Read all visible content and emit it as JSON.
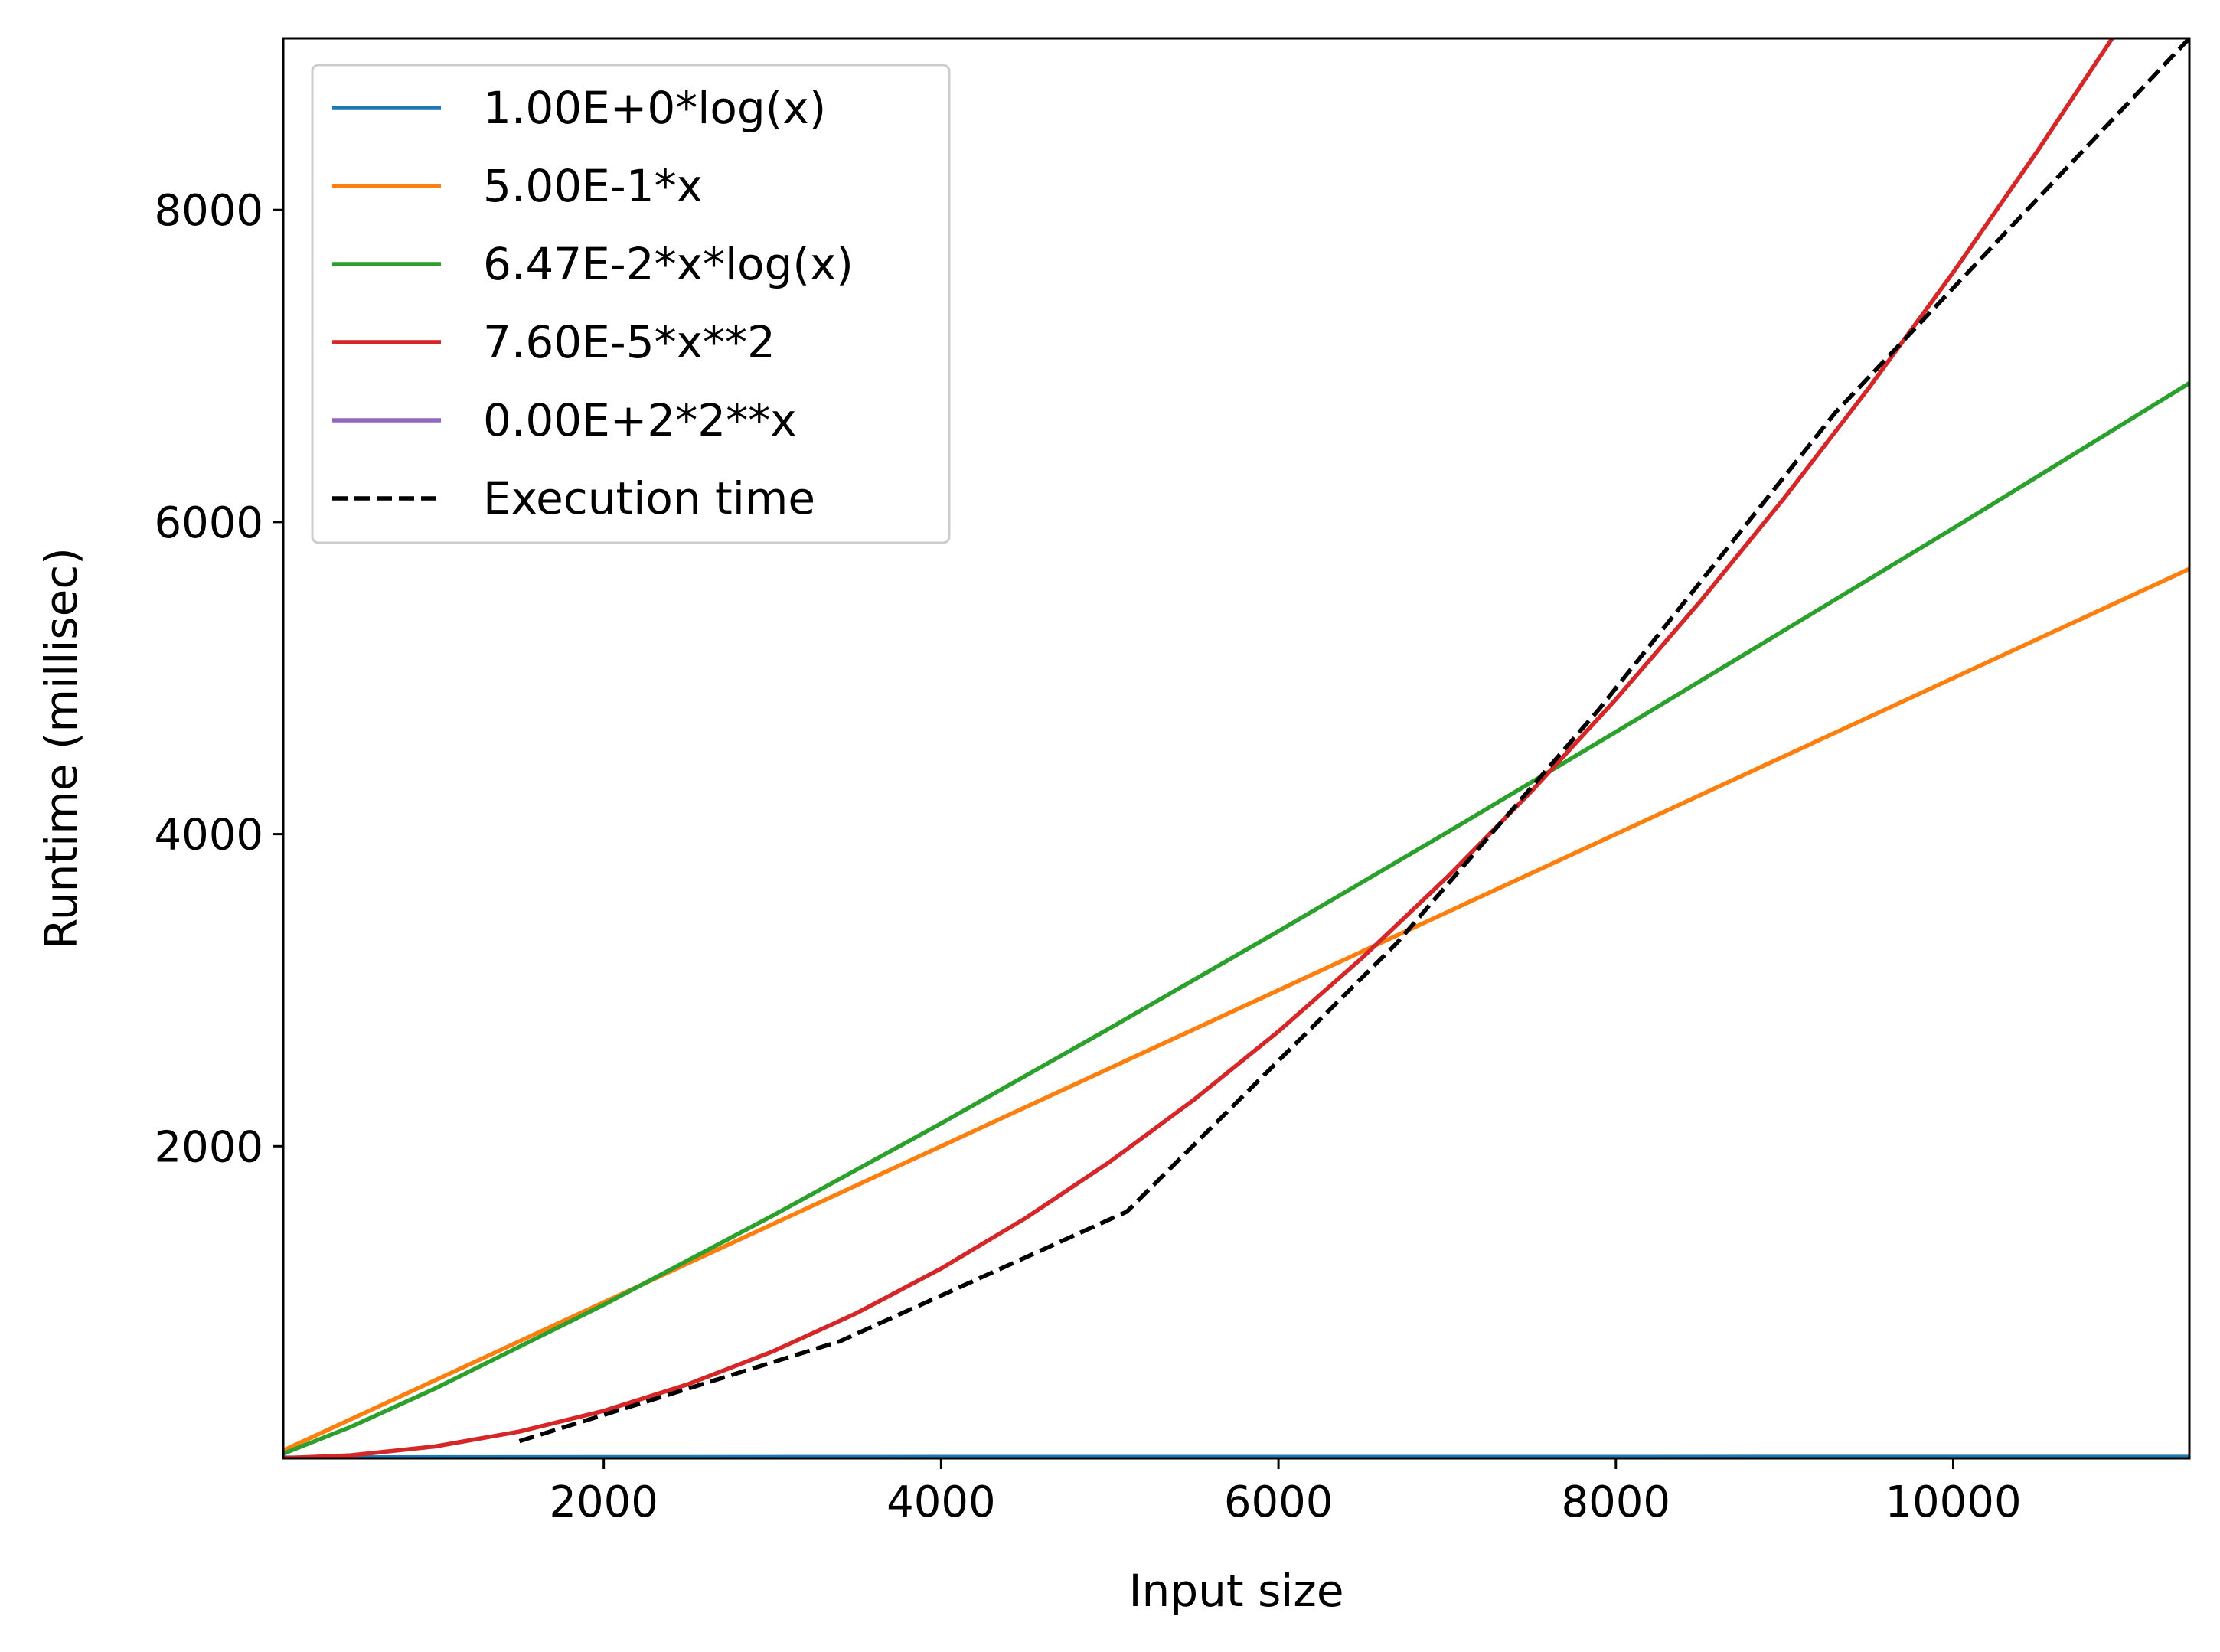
{
  "chart_data": {
    "type": "line",
    "title": "",
    "xlabel": "Input size",
    "ylabel": "Runtime (millisec)",
    "xlim": [
      100,
      11400
    ],
    "ylim": [
      0,
      9100
    ],
    "xticks": [
      2000,
      4000,
      6000,
      8000,
      10000
    ],
    "yticks": [
      2000,
      4000,
      6000,
      8000
    ],
    "grid": false,
    "legend_position": "top-left",
    "series": [
      {
        "name": "1.00E+0*log(x)",
        "color": "#1f77b4",
        "dashed": false,
        "x": [
          100,
          1000,
          2000,
          4000,
          6000,
          8000,
          10000,
          11400
        ],
        "y": [
          4.6,
          6.9,
          7.6,
          8.3,
          8.7,
          9.0,
          9.2,
          9.3
        ]
      },
      {
        "name": "5.00E-1*x",
        "color": "#ff7f0e",
        "dashed": false,
        "x": [
          100,
          11400
        ],
        "y": [
          50,
          5700
        ]
      },
      {
        "name": "6.47E-2*x*log(x)",
        "color": "#2ca02c",
        "dashed": false,
        "x": [
          100,
          500,
          1000,
          2000,
          3000,
          4000,
          5000,
          6000,
          7000,
          8000,
          9000,
          10000,
          11400
        ],
        "y": [
          30,
          201,
          447,
          984,
          1554,
          2146,
          2756,
          3378,
          4011,
          4655,
          5307,
          5960,
          6890
        ]
      },
      {
        "name": "7.60E-5*x**2",
        "color": "#d62728",
        "dashed": false,
        "x": [
          100,
          500,
          1000,
          1500,
          2000,
          2500,
          3000,
          3500,
          4000,
          4500,
          5000,
          5500,
          6000,
          6500,
          7000,
          7500,
          8000,
          8500,
          9000,
          9500,
          10000,
          10500,
          10950
        ],
        "y": [
          1,
          19,
          76,
          171,
          304,
          475,
          684,
          931,
          1216,
          1539,
          1900,
          2299,
          2736,
          3211,
          3724,
          4275,
          4864,
          5491,
          6156,
          6859,
          7600,
          8379,
          9112
        ]
      },
      {
        "name": "0.00E+2*2**x",
        "color": "#9467bd",
        "dashed": false,
        "x": [],
        "y": []
      },
      {
        "name": "Execution time",
        "color": "#000000",
        "dashed": true,
        "x": [
          1500,
          3400,
          5100,
          6700,
          7900,
          9300,
          11400
        ],
        "y": [
          110,
          750,
          1580,
          3300,
          4800,
          6700,
          9100
        ]
      }
    ]
  }
}
